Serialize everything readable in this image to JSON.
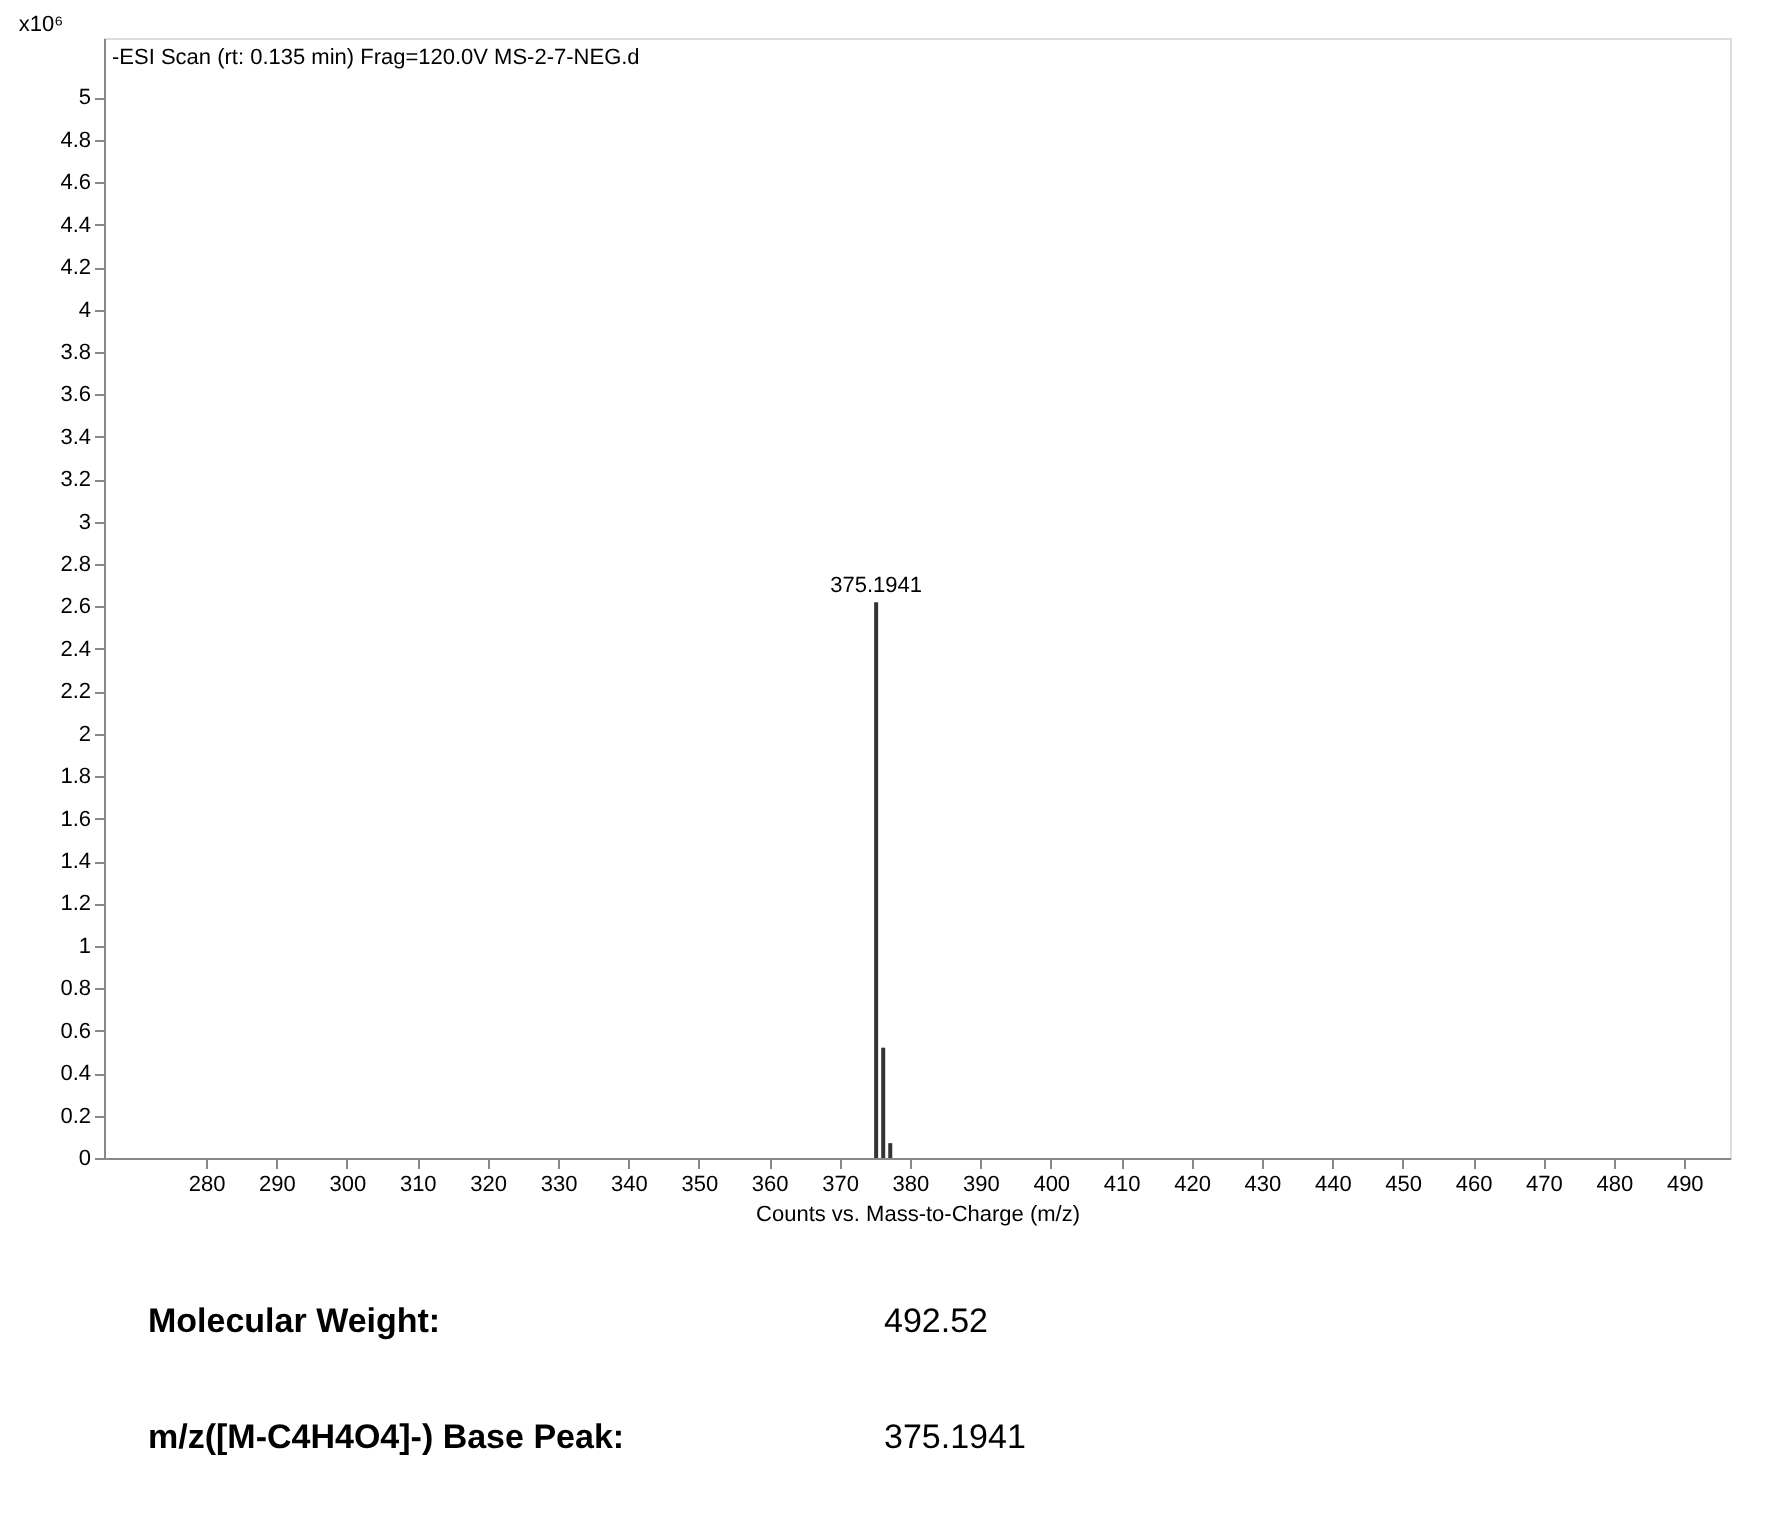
{
  "chart_data": {
    "type": "bar",
    "title": "-ESI Scan (rt: 0.135 min) Frag=120.0V MS-2-7-NEG.d",
    "xlabel": "Counts vs. Mass-to-Charge (m/z)",
    "ylabel": "x10⁶",
    "x": [
      375.1941,
      376.2,
      377.2
    ],
    "values": [
      2.62,
      0.52,
      0.07
    ],
    "color": "#333333",
    "xlim": [
      265.5,
      496.5
    ],
    "ylim": [
      0,
      5.28
    ],
    "xticks": [
      280,
      290,
      300,
      310,
      320,
      330,
      340,
      350,
      360,
      370,
      380,
      390,
      400,
      410,
      420,
      430,
      440,
      450,
      460,
      470,
      480,
      490
    ],
    "yticks": [
      0,
      0.2,
      0.4,
      0.6,
      0.8,
      1,
      1.2,
      1.4,
      1.6,
      1.8,
      2,
      2.2,
      2.4,
      2.6,
      2.8,
      3,
      3.2,
      3.4,
      3.6,
      3.8,
      4,
      4.2,
      4.4,
      4.6,
      4.8,
      5
    ],
    "grid": false,
    "annotations": [
      {
        "text": "375.1941",
        "x": 375.1941,
        "y": 2.62
      },
      "Molecular Weight:",
      "492.52",
      "m/z([M-C4H4O4]-) Base Peak:",
      "375.1941"
    ]
  }
}
